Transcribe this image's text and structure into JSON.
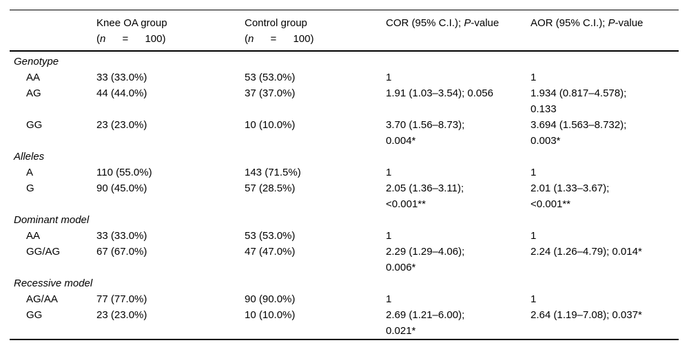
{
  "table": {
    "header": {
      "knee": {
        "title": "Knee OA group",
        "n_open": "(",
        "n_var": "n",
        "n_rest": " = 100)"
      },
      "control": {
        "title": "Control group",
        "n_open": "(",
        "n_var": "n",
        "n_rest": " = 100)"
      },
      "cor": {
        "prefix": "COR (95% C.I.); ",
        "p_var": "P",
        "suffix": "-value"
      },
      "aor": {
        "prefix": "AOR (95% C.I.); ",
        "p_var": "P",
        "suffix": "-value"
      }
    },
    "sections": [
      {
        "title": "Genotype",
        "rows": [
          {
            "label": "AA",
            "knee_oa": "33 (33.0%)",
            "control": "53 (53.0%)",
            "cor": "1",
            "aor": "1"
          },
          {
            "label": "AG",
            "knee_oa": "44 (44.0%)",
            "control": "37 (37.0%)",
            "cor": "1.91 (1.03–3.54); 0.056",
            "aor": "1.934 (0.817–4.578);\n0.133"
          },
          {
            "label": "GG",
            "knee_oa": "23 (23.0%)",
            "control": "10 (10.0%)",
            "cor": "3.70 (1.56–8.73);\n0.004*",
            "aor": "3.694 (1.563–8.732);\n0.003*"
          }
        ]
      },
      {
        "title": "Alleles",
        "rows": [
          {
            "label": "A",
            "knee_oa": "110 (55.0%)",
            "control": "143 (71.5%)",
            "cor": "1",
            "aor": "1"
          },
          {
            "label": "G",
            "knee_oa": "90 (45.0%)",
            "control": "57 (28.5%)",
            "cor": "2.05 (1.36–3.11);\n<0.001**",
            "aor": "2.01 (1.33–3.67);\n<0.001**"
          }
        ]
      },
      {
        "title": "Dominant model",
        "rows": [
          {
            "label": "AA",
            "knee_oa": "33 (33.0%)",
            "control": "53 (53.0%)",
            "cor": "1",
            "aor": "1"
          },
          {
            "label": "GG/AG",
            "knee_oa": "67 (67.0%)",
            "control": "47 (47.0%)",
            "cor": "2.29 (1.29–4.06);\n0.006*",
            "aor": "2.24 (1.26–4.79); 0.014*"
          }
        ]
      },
      {
        "title": "Recessive model",
        "rows": [
          {
            "label": "AG/AA",
            "knee_oa": "77 (77.0%)",
            "control": "90 (90.0%)",
            "cor": "1",
            "aor": "1"
          },
          {
            "label": "GG",
            "knee_oa": "23 (23.0%)",
            "control": "10 (10.0%)",
            "cor": "2.69 (1.21–6.00);\n0.021*",
            "aor": "2.64 (1.19–7.08); 0.037*"
          }
        ]
      }
    ]
  }
}
